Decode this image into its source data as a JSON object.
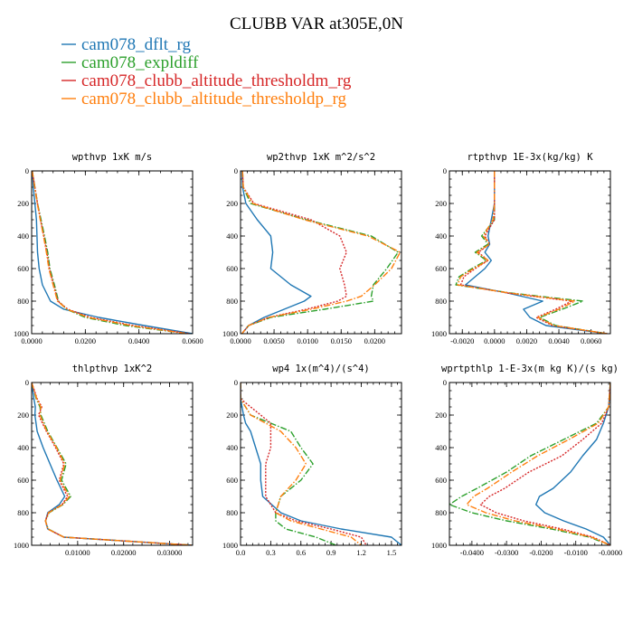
{
  "title": "CLUBB VAR at305E,0N",
  "legend": [
    {
      "name": "cam078_dflt_rg",
      "color": "#1f77b4",
      "dash": "solid"
    },
    {
      "name": "cam078_expldiff",
      "color": "#2ca02c",
      "dash": "dashdot"
    },
    {
      "name": "cam078_clubb_altitude_thresholdm_rg",
      "color": "#d62728",
      "dash": "dotted"
    },
    {
      "name": "cam078_clubb_altitude_thresholdp_rg",
      "color": "#ff7f0e",
      "dash": "dashdot"
    }
  ],
  "chart_data": [
    {
      "type": "line",
      "title": "wpthvp  1xK m/s",
      "xlim": [
        0,
        0.06
      ],
      "ylim": [
        1000,
        0
      ],
      "xticks": [
        0,
        0.02,
        0.04,
        0.06
      ],
      "xticklabels": [
        "0.0000",
        "0.0200",
        "0.0400",
        "0.0600"
      ],
      "yticks": [
        0,
        200,
        400,
        600,
        800,
        1000
      ],
      "yticklabels": [
        "0",
        "200",
        "400",
        "600",
        "800",
        "1000"
      ],
      "y": [
        0,
        100,
        200,
        300,
        400,
        500,
        600,
        700,
        800,
        850,
        900,
        950,
        1000
      ],
      "series": [
        {
          "name": "cam078_dflt_rg",
          "values": [
            0.0003,
            0.0006,
            0.0012,
            0.0018,
            0.002,
            0.0022,
            0.0028,
            0.004,
            0.007,
            0.012,
            0.025,
            0.042,
            0.06
          ]
        },
        {
          "name": "cam078_expldiff",
          "values": [
            0.0002,
            0.0012,
            0.0022,
            0.0035,
            0.0048,
            0.006,
            0.0068,
            0.0085,
            0.01,
            0.013,
            0.02,
            0.035,
            0.058
          ]
        },
        {
          "name": "cam078_clubb_altitude_thresholdm_rg",
          "values": [
            0.0002,
            0.0012,
            0.0022,
            0.0033,
            0.0045,
            0.0057,
            0.0066,
            0.0082,
            0.0098,
            0.0135,
            0.022,
            0.038,
            0.059
          ]
        },
        {
          "name": "cam078_clubb_altitude_thresholdp_rg",
          "values": [
            0.0002,
            0.0011,
            0.0021,
            0.0032,
            0.0044,
            0.0055,
            0.0064,
            0.008,
            0.0096,
            0.0132,
            0.021,
            0.037,
            0.058
          ]
        }
      ]
    },
    {
      "type": "line",
      "title": "wp2thvp  1xK m^2/s^2",
      "xlim": [
        0,
        0.024
      ],
      "ylim": [
        1000,
        0
      ],
      "xticks": [
        0,
        0.005,
        0.01,
        0.015,
        0.02
      ],
      "xticklabels": [
        "0.0000",
        "0.0050",
        "0.0100",
        "0.0150",
        "0.0200"
      ],
      "yticks": [
        0,
        200,
        400,
        600,
        800,
        1000
      ],
      "yticklabels": [
        "0",
        "200",
        "400",
        "600",
        "800",
        "1000"
      ],
      "y": [
        0,
        100,
        200,
        300,
        400,
        500,
        600,
        700,
        770,
        800,
        850,
        900,
        950,
        1000
      ],
      "series": [
        {
          "name": "cam078_dflt_rg",
          "values": [
            0.0002,
            0.0003,
            0.0008,
            0.0025,
            0.0045,
            0.0048,
            0.0045,
            0.0075,
            0.0105,
            0.0095,
            0.0065,
            0.0035,
            0.0012,
            0.0002
          ]
        },
        {
          "name": "cam078_expldiff",
          "values": [
            0.0003,
            0.0004,
            0.0015,
            0.0098,
            0.0195,
            0.0235,
            0.0218,
            0.0198,
            0.0195,
            0.0198,
            0.0125,
            0.0045,
            0.0012,
            0.0002
          ]
        },
        {
          "name": "cam078_clubb_altitude_thresholdm_rg",
          "values": [
            0.0003,
            0.0004,
            0.002,
            0.0105,
            0.0148,
            0.0158,
            0.0148,
            0.0155,
            0.0158,
            0.0145,
            0.0098,
            0.0042,
            0.0012,
            0.0002
          ]
        },
        {
          "name": "cam078_clubb_altitude_thresholdp_rg",
          "values": [
            0.0003,
            0.0004,
            0.0018,
            0.0095,
            0.019,
            0.0238,
            0.0225,
            0.02,
            0.018,
            0.0158,
            0.0105,
            0.0042,
            0.0012,
            0.0002
          ]
        }
      ]
    },
    {
      "type": "line",
      "title": "rtpthvp  1E-3x(kg/kg) K",
      "xlim": [
        -0.0028,
        0.0072
      ],
      "ylim": [
        1000,
        0
      ],
      "xticks": [
        -0.002,
        0,
        0.002,
        0.004,
        0.006
      ],
      "xticklabels": [
        "-0.0020",
        "0.0000",
        "0.0020",
        "0.0040",
        "0.0060"
      ],
      "yticks": [
        0,
        200,
        400,
        600,
        800,
        1000
      ],
      "yticklabels": [
        "0",
        "200",
        "400",
        "600",
        "800",
        "1000"
      ],
      "y": [
        0,
        200,
        300,
        400,
        450,
        500,
        550,
        600,
        650,
        700,
        750,
        800,
        850,
        900,
        950,
        1000
      ],
      "series": [
        {
          "name": "cam078_dflt_rg",
          "values": [
            0.0,
            0.0,
            -0.0002,
            -0.0004,
            -0.0003,
            -0.0006,
            -0.0002,
            -0.0006,
            -0.0012,
            -0.0018,
            0.0008,
            0.003,
            0.0018,
            0.0022,
            0.0032,
            0.007
          ]
        },
        {
          "name": "cam078_expldiff",
          "values": [
            0.0,
            0.0,
            0.0,
            -0.0008,
            -0.0004,
            -0.0012,
            -0.0005,
            -0.0014,
            -0.0022,
            -0.0024,
            0.001,
            0.0055,
            0.0042,
            0.0028,
            0.0038,
            0.007
          ]
        },
        {
          "name": "cam078_clubb_altitude_thresholdm_rg",
          "values": [
            0.0,
            0.0,
            0.0,
            -0.0006,
            -0.0003,
            -0.001,
            -0.0004,
            -0.0012,
            -0.0019,
            -0.0021,
            0.0008,
            0.0048,
            0.0038,
            0.0026,
            0.0036,
            0.007
          ]
        },
        {
          "name": "cam078_clubb_altitude_thresholdp_rg",
          "values": [
            0.0,
            0.0,
            -0.0001,
            -0.0007,
            -0.0003,
            -0.0011,
            -0.0004,
            -0.0013,
            -0.0021,
            -0.0023,
            0.0009,
            0.005,
            0.004,
            0.0027,
            0.0037,
            0.007
          ]
        }
      ]
    },
    {
      "type": "line",
      "title": "thlpthvp  1xK^2",
      "xlim": [
        0,
        0.035
      ],
      "ylim": [
        1000,
        0
      ],
      "xticks": [
        0.01,
        0.02,
        0.03
      ],
      "xticklabels": [
        "0.01000",
        "0.02000",
        "0.03000"
      ],
      "yticks": [
        0,
        200,
        400,
        600,
        800,
        1000
      ],
      "yticklabels": [
        "0",
        "200",
        "400",
        "600",
        "800",
        "1000"
      ],
      "y": [
        0,
        100,
        150,
        200,
        300,
        400,
        500,
        600,
        700,
        750,
        800,
        850,
        900,
        950,
        1000
      ],
      "series": [
        {
          "name": "cam078_dflt_rg",
          "values": [
            0.0,
            0.0005,
            0.0008,
            0.0007,
            0.0012,
            0.0025,
            0.004,
            0.0055,
            0.0072,
            0.006,
            0.0035,
            0.003,
            0.0035,
            0.007,
            0.035
          ]
        },
        {
          "name": "cam078_expldiff",
          "values": [
            0.0,
            0.001,
            0.0018,
            0.002,
            0.0035,
            0.0055,
            0.0075,
            0.0065,
            0.0085,
            0.0068,
            0.0038,
            0.003,
            0.0036,
            0.007,
            0.035
          ]
        },
        {
          "name": "cam078_clubb_altitude_thresholdm_rg",
          "values": [
            0.0,
            0.0012,
            0.0022,
            0.0015,
            0.0032,
            0.0052,
            0.007,
            0.006,
            0.0078,
            0.0066,
            0.0036,
            0.003,
            0.0035,
            0.007,
            0.035
          ]
        },
        {
          "name": "cam078_clubb_altitude_thresholdp_rg",
          "values": [
            0.0,
            0.0011,
            0.002,
            0.0018,
            0.0033,
            0.0054,
            0.0072,
            0.0062,
            0.0082,
            0.0067,
            0.0037,
            0.003,
            0.0035,
            0.007,
            0.035
          ]
        }
      ]
    },
    {
      "type": "line",
      "title": "wp4  1x(m^4)/(s^4)",
      "xlim": [
        0,
        1.6
      ],
      "ylim": [
        1000,
        0
      ],
      "xticks": [
        0,
        0.3,
        0.6,
        0.9,
        1.2,
        1.5
      ],
      "xticklabels": [
        "0.0",
        "0.3",
        "0.6",
        "0.9",
        "1.2",
        "1.5"
      ],
      "yticks": [
        0,
        200,
        400,
        600,
        800,
        1000
      ],
      "yticklabels": [
        "0",
        "200",
        "400",
        "600",
        "800",
        "1000"
      ],
      "y": [
        0,
        100,
        200,
        250,
        300,
        400,
        500,
        600,
        700,
        800,
        850,
        900,
        950,
        1000
      ],
      "series": [
        {
          "name": "cam078_dflt_rg",
          "values": [
            0.0,
            0.0,
            0.03,
            0.05,
            0.1,
            0.15,
            0.2,
            0.2,
            0.22,
            0.4,
            0.6,
            1.0,
            1.5,
            1.6
          ]
        },
        {
          "name": "cam078_expldiff",
          "values": [
            0.0,
            0.0,
            0.1,
            0.3,
            0.5,
            0.6,
            0.72,
            0.6,
            0.4,
            0.35,
            0.35,
            0.45,
            0.75,
            0.95
          ]
        },
        {
          "name": "cam078_clubb_altitude_thresholdm_rg",
          "values": [
            0.0,
            0.0,
            0.2,
            0.3,
            0.3,
            0.3,
            0.25,
            0.25,
            0.25,
            0.35,
            0.55,
            0.9,
            1.2,
            1.25
          ]
        },
        {
          "name": "cam078_clubb_altitude_thresholdp_rg",
          "values": [
            0.0,
            0.0,
            0.1,
            0.25,
            0.4,
            0.55,
            0.65,
            0.55,
            0.4,
            0.35,
            0.5,
            0.8,
            1.1,
            1.2
          ]
        }
      ]
    },
    {
      "type": "line",
      "title": "wprtpthlp  1-E-3x(m kg K)/(s kg)",
      "xlim": [
        -0.0465,
        0.0
      ],
      "ylim": [
        1000,
        0
      ],
      "xticks": [
        -0.04,
        -0.03,
        -0.02,
        -0.01,
        0
      ],
      "xticklabels": [
        "-0.0400",
        "-0.0300",
        "-0.0200",
        "-0.0100",
        "-0.0000"
      ],
      "yticks": [
        0,
        200,
        400,
        600,
        800,
        1000
      ],
      "yticklabels": [
        "0",
        "200",
        "400",
        "600",
        "800",
        "1000"
      ],
      "y": [
        0,
        150,
        250,
        350,
        450,
        550,
        650,
        700,
        750,
        800,
        850,
        900,
        950,
        1000
      ],
      "series": [
        {
          "name": "cam078_dflt_rg",
          "values": [
            0.0,
            -0.0005,
            -0.002,
            -0.004,
            -0.008,
            -0.0115,
            -0.0165,
            -0.0205,
            -0.0215,
            -0.019,
            -0.0135,
            -0.007,
            -0.002,
            0.0
          ]
        },
        {
          "name": "cam078_expldiff",
          "values": [
            0.0,
            -0.0005,
            -0.004,
            -0.0135,
            -0.023,
            -0.03,
            -0.0385,
            -0.043,
            -0.0465,
            -0.04,
            -0.03,
            -0.017,
            -0.006,
            0.0
          ]
        },
        {
          "name": "cam078_clubb_altitude_thresholdm_rg",
          "values": [
            0.0,
            -0.0005,
            -0.0025,
            -0.008,
            -0.014,
            -0.0235,
            -0.0305,
            -0.035,
            -0.0375,
            -0.033,
            -0.025,
            -0.014,
            -0.005,
            0.0
          ]
        },
        {
          "name": "cam078_clubb_altitude_thresholdp_rg",
          "values": [
            0.0,
            -0.0005,
            -0.0035,
            -0.012,
            -0.021,
            -0.0285,
            -0.0355,
            -0.0395,
            -0.0415,
            -0.036,
            -0.0275,
            -0.0155,
            -0.0055,
            0.0
          ]
        }
      ]
    }
  ]
}
